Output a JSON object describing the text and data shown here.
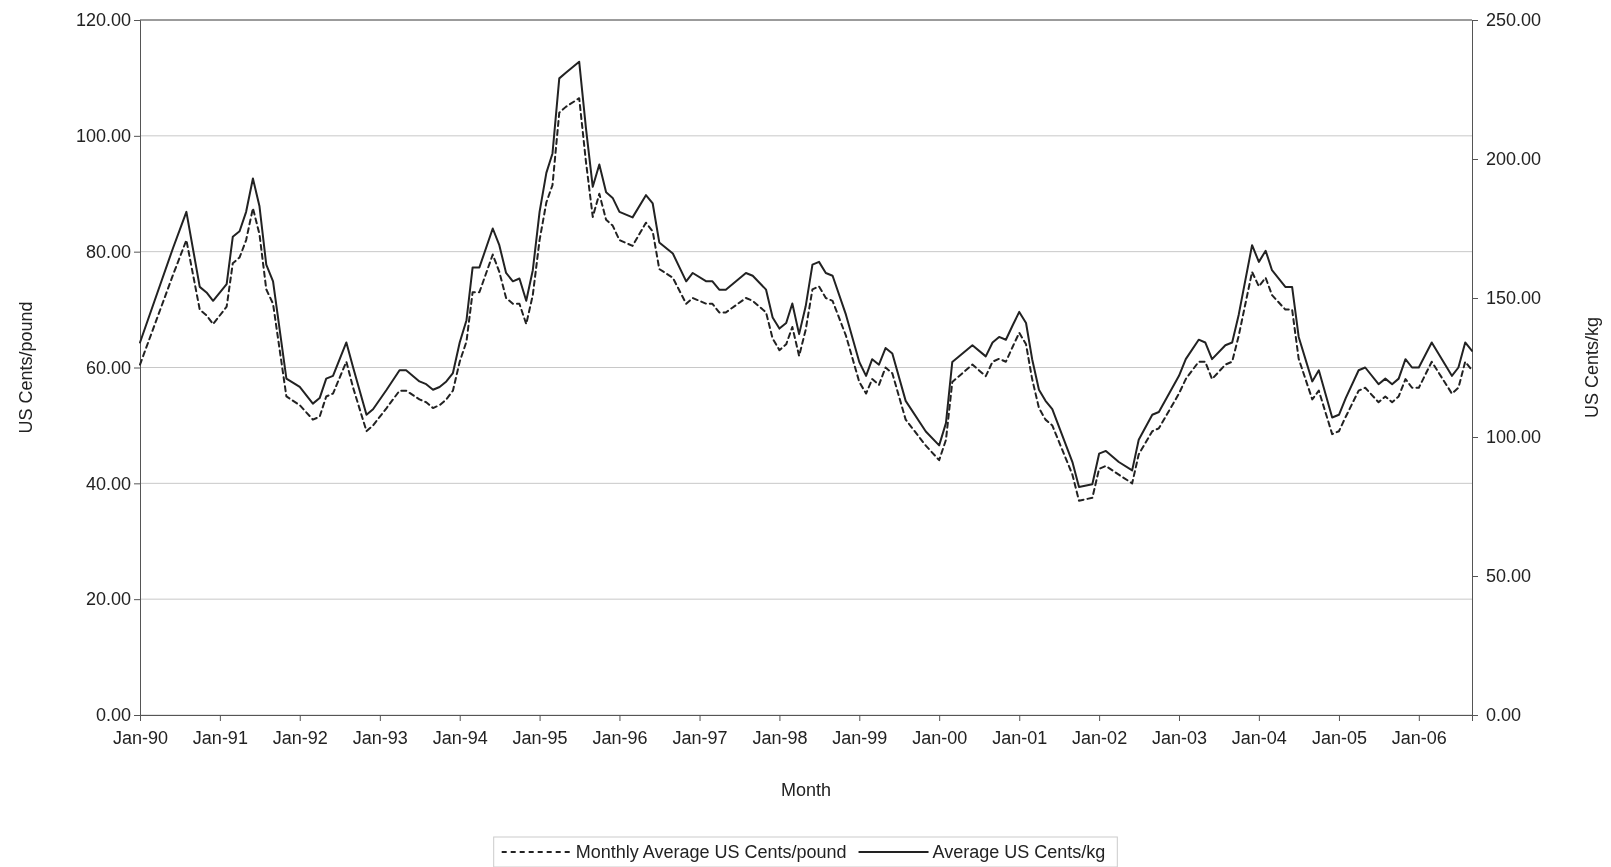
{
  "chart_data": {
    "type": "line",
    "xlabel": "Month",
    "ylabel": "US Cents/pound",
    "y2label": "US Cents/kg",
    "x": [
      "1990-01",
      "1990-06",
      "1990-08",
      "1990-10",
      "1990-11",
      "1990-12",
      "1991-02",
      "1991-03",
      "1991-04",
      "1991-05",
      "1991-06",
      "1991-07",
      "1991-08",
      "1991-09",
      "1991-11",
      "1992-01",
      "1992-03",
      "1992-04",
      "1992-05",
      "1992-06",
      "1992-08",
      "1992-09",
      "1992-11",
      "1992-12",
      "1993-02",
      "1993-04",
      "1993-05",
      "1993-07",
      "1993-08",
      "1993-09",
      "1993-10",
      "1993-11",
      "1993-12",
      "1994-01",
      "1994-02",
      "1994-03",
      "1994-04",
      "1994-06",
      "1994-07",
      "1994-08",
      "1994-09",
      "1994-10",
      "1994-11",
      "1994-12",
      "1995-01",
      "1995-02",
      "1995-03",
      "1995-04",
      "1995-05",
      "1995-07",
      "1995-08",
      "1995-09",
      "1995-10",
      "1995-11",
      "1995-12",
      "1996-01",
      "1996-03",
      "1996-05",
      "1996-06",
      "1996-07",
      "1996-09",
      "1996-11",
      "1996-12",
      "1997-02",
      "1997-03",
      "1997-04",
      "1997-05",
      "1997-08",
      "1997-09",
      "1997-11",
      "1997-12",
      "1998-01",
      "1998-02",
      "1998-03",
      "1998-04",
      "1998-05",
      "1998-06",
      "1998-07",
      "1998-08",
      "1998-09",
      "1998-11",
      "1999-01",
      "1999-02",
      "1999-03",
      "1999-04",
      "1999-05",
      "1999-06",
      "1999-08",
      "1999-11",
      "2000-01",
      "2000-02",
      "2000-03",
      "2000-06",
      "2000-08",
      "2000-09",
      "2000-10",
      "2000-11",
      "2000-12",
      "2001-01",
      "2001-02",
      "2001-03",
      "2001-04",
      "2001-05",
      "2001-06",
      "2001-09",
      "2001-10",
      "2001-12",
      "2002-01",
      "2002-02",
      "2002-04",
      "2002-06",
      "2002-07",
      "2002-09",
      "2002-10",
      "2003-01",
      "2003-02",
      "2003-04",
      "2003-05",
      "2003-06",
      "2003-08",
      "2003-09",
      "2003-10",
      "2003-12",
      "2004-01",
      "2004-02",
      "2004-03",
      "2004-05",
      "2004-06",
      "2004-07",
      "2004-09",
      "2004-10",
      "2004-12",
      "2005-01",
      "2005-02",
      "2005-04",
      "2005-05",
      "2005-07",
      "2005-08",
      "2005-09",
      "2005-10",
      "2005-11",
      "2005-12",
      "2006-01",
      "2006-03",
      "2006-06",
      "2006-07",
      "2006-08",
      "2006-09"
    ],
    "series": [
      {
        "name": "Monthly Average US Cents/pound",
        "color": "#222222",
        "line_style": "dashed",
        "values": [
          60.5,
          76,
          82,
          70,
          69,
          67.5,
          70.5,
          78,
          79,
          82,
          87.5,
          83,
          73.5,
          71,
          55,
          53.5,
          51,
          51.5,
          55,
          55.5,
          61,
          56.5,
          49,
          50,
          53,
          56,
          56,
          54.5,
          54,
          53,
          53.5,
          54.5,
          56,
          61,
          64.5,
          73,
          73,
          79.5,
          76.5,
          72,
          71,
          71,
          67.5,
          72.5,
          82,
          88.5,
          91.5,
          104,
          105,
          106.5,
          95.5,
          86,
          90,
          85.5,
          84.5,
          82,
          81,
          85,
          83.5,
          77,
          75.5,
          71,
          72,
          71,
          71,
          69.5,
          69.5,
          72,
          71.5,
          69.5,
          65,
          63,
          64,
          67,
          62,
          66.5,
          73.5,
          74,
          72,
          71.5,
          65.5,
          57.5,
          55.5,
          58,
          57,
          60,
          59,
          51,
          46.5,
          44,
          47.5,
          57.5,
          60.5,
          58.5,
          61,
          61.5,
          61,
          63.5,
          66,
          64,
          58,
          53,
          51,
          50,
          41.5,
          37,
          37.5,
          42.5,
          43,
          41.5,
          40,
          45,
          49,
          49.5,
          55.5,
          58,
          61,
          61,
          58,
          60.5,
          61,
          65.5,
          76.5,
          74,
          75.5,
          72.5,
          70,
          70,
          61.5,
          54.5,
          56,
          48.5,
          49,
          51.5,
          56,
          56.5,
          54,
          55,
          54,
          55,
          58,
          56.5,
          56.5,
          61,
          55.5,
          56.5,
          61,
          59.5
        ]
      },
      {
        "name": "Average US Cents/kg",
        "color": "#222222",
        "line_style": "solid",
        "axis": "y2",
        "values": [
          134,
          168,
          181,
          154,
          152,
          149,
          155,
          172,
          174,
          181,
          193,
          183,
          162,
          156,
          121,
          118,
          112,
          114,
          121,
          122,
          134,
          125,
          108,
          110,
          117,
          124,
          124,
          120,
          119,
          117,
          118,
          120,
          123,
          134,
          142,
          161,
          161,
          175,
          169,
          159,
          156,
          157,
          149,
          160,
          181,
          195,
          202,
          229,
          231,
          235,
          211,
          190,
          198,
          188,
          186,
          181,
          179,
          187,
          184,
          170,
          166,
          156,
          159,
          156,
          156,
          153,
          153,
          159,
          158,
          153,
          143,
          139,
          141,
          148,
          137,
          147,
          162,
          163,
          159,
          158,
          144,
          127,
          122,
          128,
          126,
          132,
          130,
          113,
          102,
          97,
          105,
          127,
          133,
          129,
          134,
          136,
          135,
          140,
          145,
          141,
          128,
          117,
          113,
          110,
          91,
          82,
          83,
          94,
          95,
          91,
          88,
          99,
          108,
          109,
          122,
          128,
          135,
          134,
          128,
          133,
          134,
          144,
          169,
          163,
          167,
          160,
          154,
          154,
          136,
          120,
          124,
          107,
          108,
          114,
          124,
          125,
          119,
          121,
          119,
          121,
          128,
          125,
          125,
          134,
          122,
          125,
          134,
          131
        ]
      }
    ],
    "xlim": [
      "1990-01",
      "2006-09"
    ],
    "xticks": [
      {
        "value": "1990-01",
        "label": "Jan-90"
      },
      {
        "value": "1991-01",
        "label": "Jan-91"
      },
      {
        "value": "1992-01",
        "label": "Jan-92"
      },
      {
        "value": "1993-01",
        "label": "Jan-93"
      },
      {
        "value": "1994-01",
        "label": "Jan-94"
      },
      {
        "value": "1995-01",
        "label": "Jan-95"
      },
      {
        "value": "1996-01",
        "label": "Jan-96"
      },
      {
        "value": "1997-01",
        "label": "Jan-97"
      },
      {
        "value": "1998-01",
        "label": "Jan-98"
      },
      {
        "value": "1999-01",
        "label": "Jan-99"
      },
      {
        "value": "2000-01",
        "label": "Jan-00"
      },
      {
        "value": "2001-01",
        "label": "Jan-01"
      },
      {
        "value": "2002-01",
        "label": "Jan-02"
      },
      {
        "value": "2003-01",
        "label": "Jan-03"
      },
      {
        "value": "2004-01",
        "label": "Jan-04"
      },
      {
        "value": "2005-01",
        "label": "Jan-05"
      },
      {
        "value": "2006-01",
        "label": "Jan-06"
      }
    ],
    "ylim": [
      0,
      120
    ],
    "yticks": [
      {
        "value": 0,
        "label": "0.00"
      },
      {
        "value": 20,
        "label": "20.00"
      },
      {
        "value": 40,
        "label": "40.00"
      },
      {
        "value": 60,
        "label": "60.00"
      },
      {
        "value": 80,
        "label": "80.00"
      },
      {
        "value": 100,
        "label": "100.00"
      },
      {
        "value": 120,
        "label": "120.00"
      }
    ],
    "y2lim": [
      0,
      250
    ],
    "y2ticks": [
      {
        "value": 0,
        "label": "0.00"
      },
      {
        "value": 50,
        "label": "50.00"
      },
      {
        "value": 100,
        "label": "100.00"
      },
      {
        "value": 150,
        "label": "150.00"
      },
      {
        "value": 200,
        "label": "200.00"
      },
      {
        "value": 250,
        "label": "250.00"
      }
    ],
    "grid": "y",
    "legend": "bottom",
    "marker": "none"
  }
}
